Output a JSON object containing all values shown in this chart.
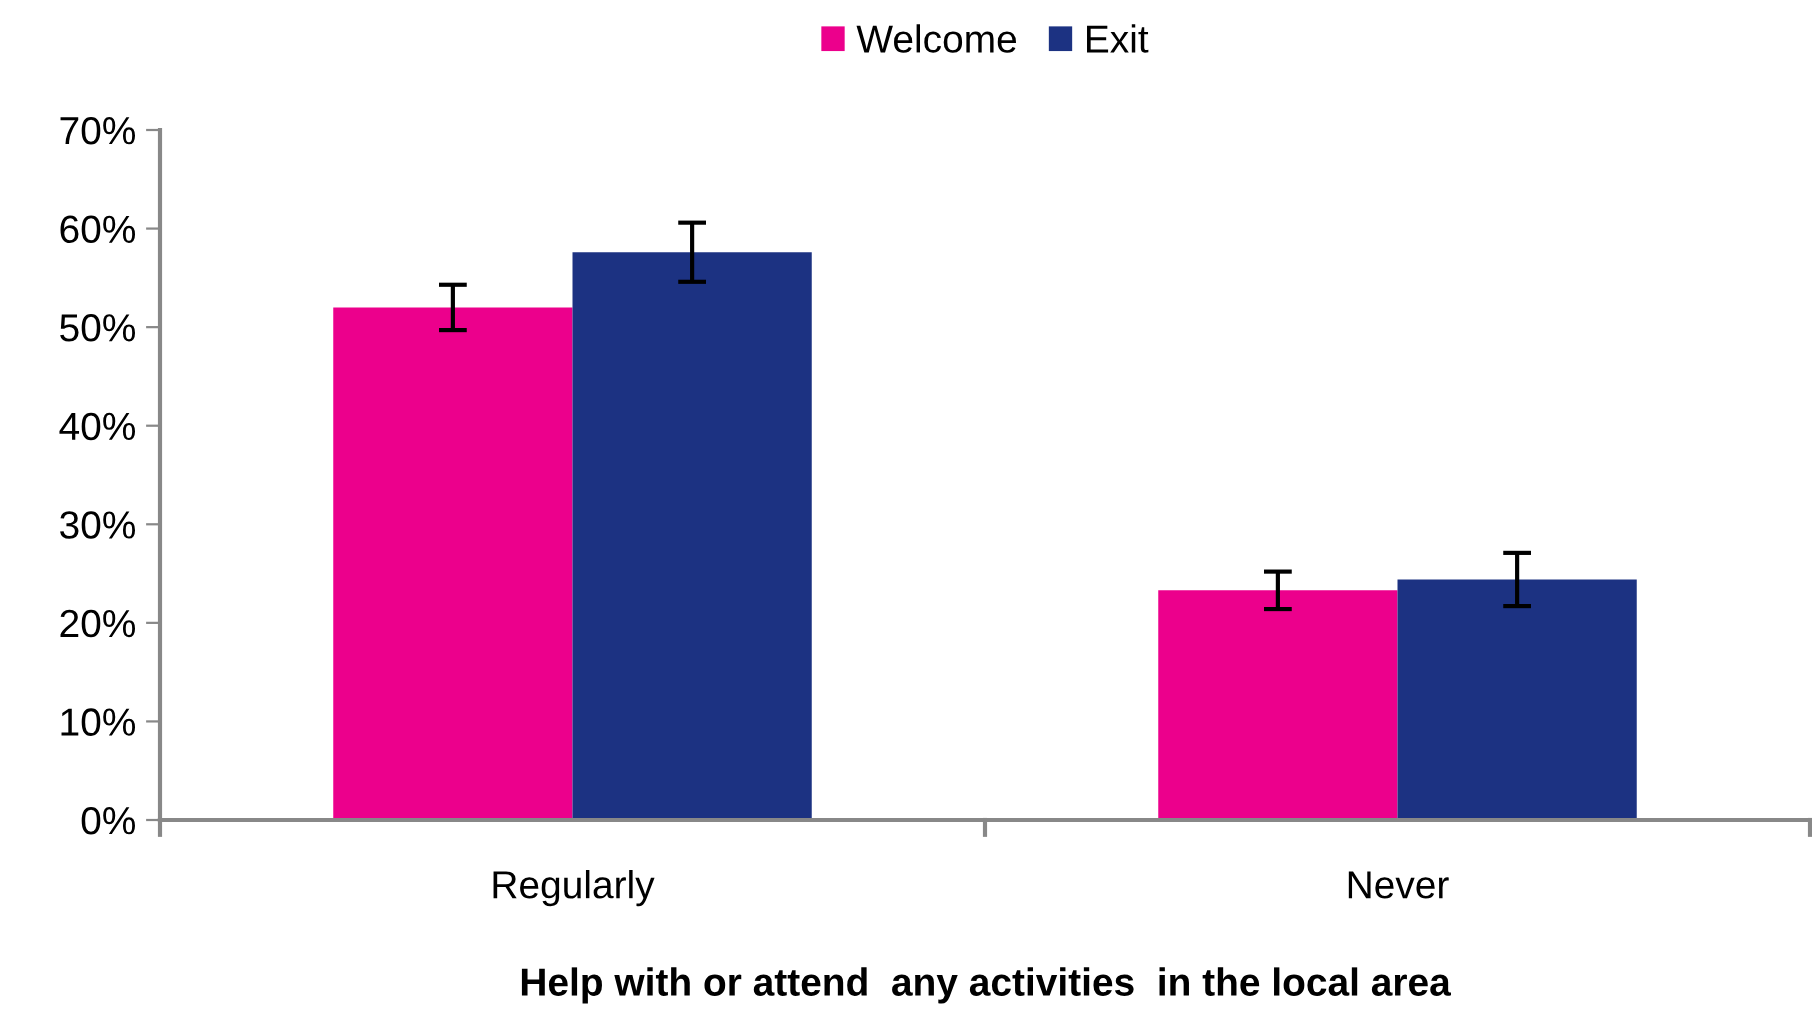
{
  "chart_data": {
    "type": "bar",
    "xlabel": "Help with or attend  any activities  in the local area",
    "categories": [
      "Regularly",
      "Never"
    ],
    "series": [
      {
        "name": "Welcome",
        "color": "#ec008c",
        "values": [
          52,
          23.3
        ],
        "errors": [
          2.3,
          1.9
        ]
      },
      {
        "name": "Exit",
        "color": "#1c3282",
        "values": [
          57.6,
          24.4
        ],
        "errors": [
          3,
          2.7
        ]
      }
    ],
    "ylim": [
      0,
      70
    ],
    "yticks": [
      {
        "value": 0,
        "label": "0%"
      },
      {
        "value": 10,
        "label": "10%"
      },
      {
        "value": 20,
        "label": "20%"
      },
      {
        "value": 30,
        "label": "30%"
      },
      {
        "value": 40,
        "label": "40%"
      },
      {
        "value": 50,
        "label": "50%"
      },
      {
        "value": 60,
        "label": "60%"
      },
      {
        "value": 70,
        "label": "70%"
      }
    ],
    "grid": false,
    "legend": "top"
  }
}
